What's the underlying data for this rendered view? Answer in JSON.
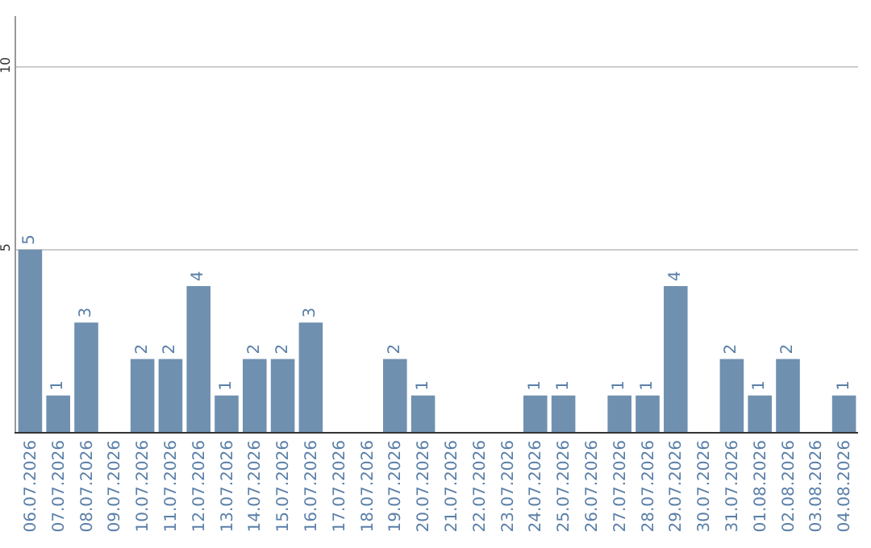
{
  "chart_data": {
    "type": "bar",
    "categories": [
      "06.07.2026",
      "07.07.2026",
      "08.07.2026",
      "09.07.2026",
      "10.07.2026",
      "11.07.2026",
      "12.07.2026",
      "13.07.2026",
      "14.07.2026",
      "15.07.2026",
      "16.07.2026",
      "17.07.2026",
      "18.07.2026",
      "19.07.2026",
      "20.07.2026",
      "21.07.2026",
      "22.07.2026",
      "23.07.2026",
      "24.07.2026",
      "25.07.2026",
      "26.07.2026",
      "27.07.2026",
      "28.07.2026",
      "29.07.2026",
      "30.07.2026",
      "31.07.2026",
      "01.08.2026",
      "02.08.2026",
      "03.08.2026",
      "04.08.2026"
    ],
    "values": [
      5,
      1,
      3,
      0,
      2,
      2,
      4,
      1,
      2,
      2,
      3,
      0,
      0,
      2,
      1,
      0,
      0,
      0,
      1,
      1,
      0,
      1,
      1,
      4,
      0,
      2,
      1,
      2,
      0,
      1
    ],
    "value_labels": [
      "5",
      "1",
      "3",
      null,
      "2",
      "2",
      "4",
      "1",
      "2",
      "2",
      "3",
      null,
      null,
      "2",
      "1",
      null,
      null,
      null,
      "1",
      "1",
      null,
      "1",
      "1",
      "4",
      null,
      "2",
      "1",
      "2",
      null,
      "1"
    ],
    "color": "#7090b0",
    "ylim": [
      0,
      11.4
    ],
    "yticks": [
      5,
      10
    ],
    "grid": "y"
  }
}
